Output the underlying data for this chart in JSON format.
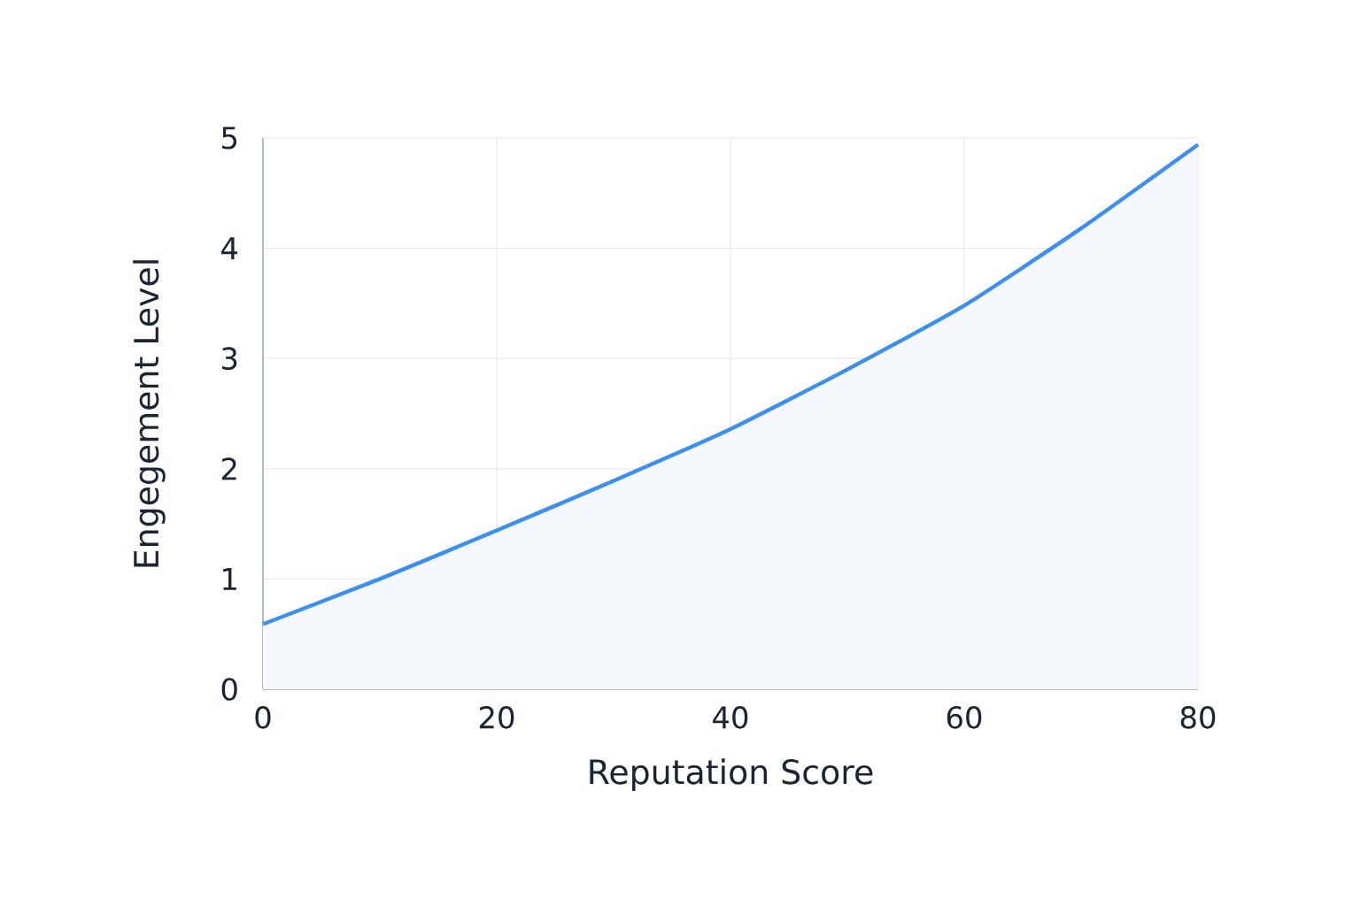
{
  "chart_data": {
    "type": "area",
    "xlabel": "Reputation Score",
    "ylabel": "Engegement Level",
    "x": [
      0,
      10,
      20,
      30,
      40,
      50,
      60,
      70,
      80
    ],
    "series": [
      {
        "color": "#3b8ff0",
        "values": [
          0.59,
          1.0,
          1.44,
          1.89,
          2.36,
          2.9,
          3.48,
          4.18,
          4.94
        ]
      }
    ],
    "xlim": [
      0,
      80
    ],
    "ylim": [
      0,
      5
    ],
    "xticks": [
      0,
      20,
      40,
      60,
      80
    ],
    "yticks": [
      0,
      1,
      2,
      3,
      4,
      5
    ],
    "grid": true
  }
}
